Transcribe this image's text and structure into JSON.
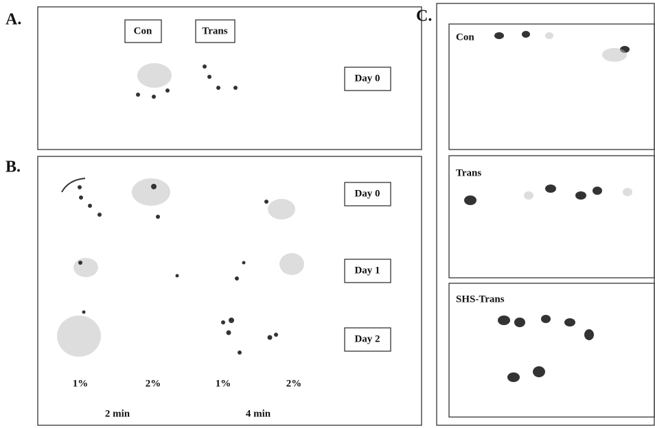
{
  "panel_a": {
    "label": "A.",
    "groups": [
      "Con",
      "Trans"
    ],
    "day": "Day 0"
  },
  "panel_b": {
    "label": "B.",
    "days": [
      "Day 0",
      "Day 1",
      "Day 2"
    ],
    "concentrations": [
      "1%",
      "2%",
      "1%",
      "2%"
    ],
    "times": [
      "2 min",
      "4 min"
    ]
  },
  "panel_c": {
    "label": "C.",
    "conditions": [
      "Con",
      "Trans",
      "SHS-Trans"
    ]
  }
}
